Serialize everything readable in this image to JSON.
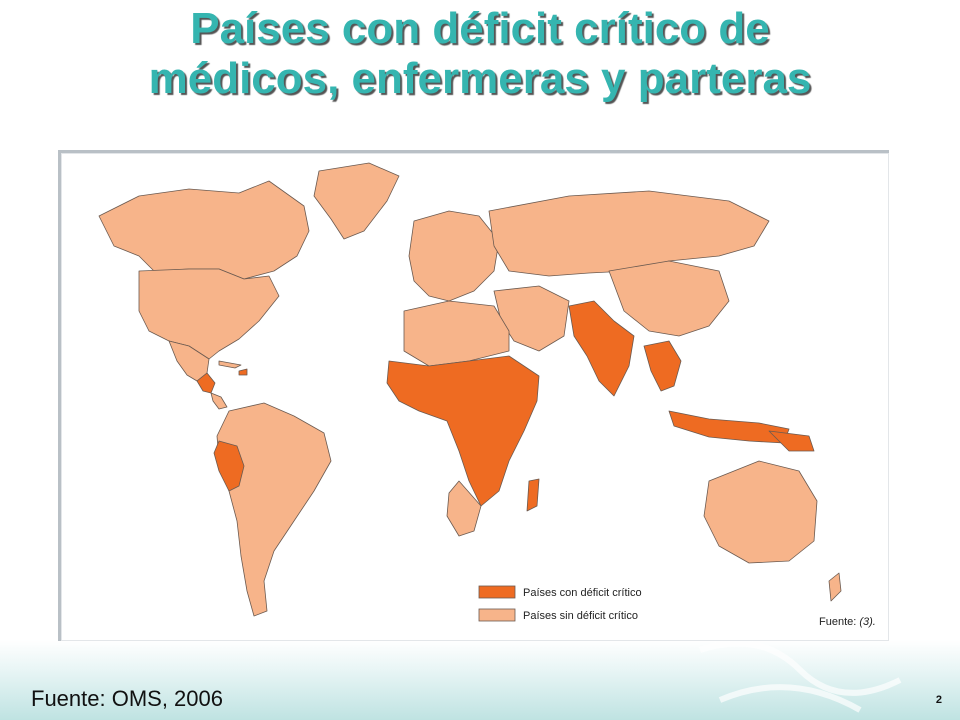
{
  "slide": {
    "title_line1": "Países con déficit crítico de",
    "title_line2": "médicos, enfermeras y parteras",
    "source": "Fuente: OMS, 2006",
    "page_number": "2"
  },
  "map": {
    "legend": [
      {
        "label": "Países con déficit crítico",
        "color": "#ee6b22"
      },
      {
        "label": "Países sin déficit crítico",
        "color": "#f7b48a"
      }
    ],
    "source_note_prefix": "Fuente: ",
    "source_note_ref": "(3)."
  },
  "colors": {
    "title": "#35b5b0",
    "critical": "#ee6b22",
    "non_critical": "#f7b48a",
    "border": "#5a5a5a"
  }
}
